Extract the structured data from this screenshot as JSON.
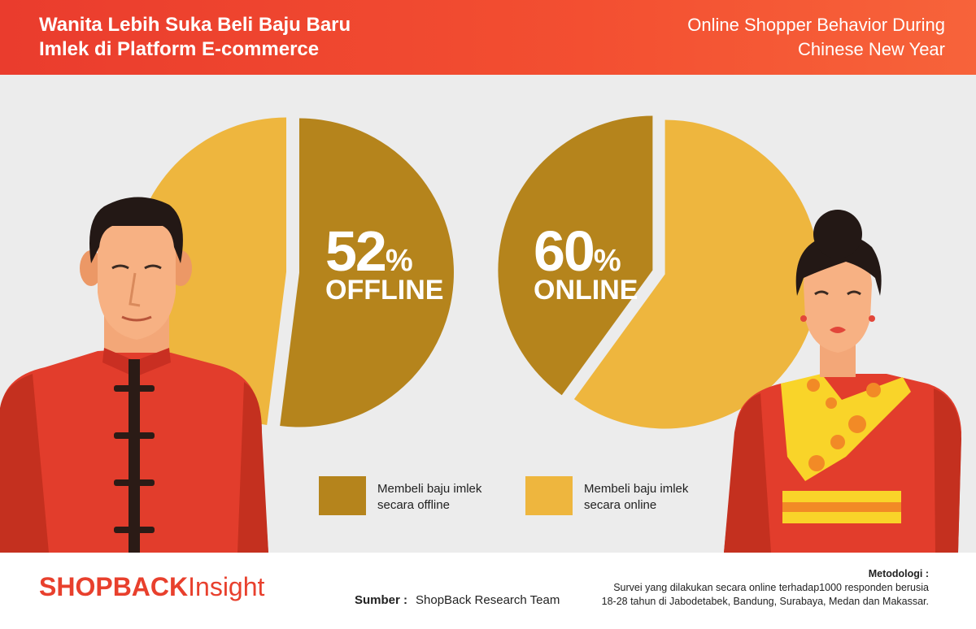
{
  "header": {
    "title_line1": "Wanita Lebih Suka Beli Baju Baru",
    "title_line2": "Imlek di Platform E-commerce",
    "subtitle_line1": "Online Shopper Behavior During",
    "subtitle_line2": "Chinese New Year"
  },
  "colors": {
    "offline": "#b5841c",
    "online": "#eeb63e",
    "accent": "#e8402d"
  },
  "chart_data": [
    {
      "type": "pie",
      "title": "",
      "big_value": "52",
      "big_unit": "%",
      "big_label": "OFFLINE",
      "slices": [
        {
          "label": "Membeli baju imlek secara offline",
          "value": 52,
          "color": "#b5841c"
        },
        {
          "label": "Membeli baju imlek secara online",
          "value": 48,
          "color": "#eeb63e"
        }
      ]
    },
    {
      "type": "pie",
      "title": "",
      "big_value": "60",
      "big_unit": "%",
      "big_label": "ONLINE",
      "slices": [
        {
          "label": "Membeli baju imlek secara online",
          "value": 60,
          "color": "#eeb63e"
        },
        {
          "label": "Membeli baju imlek secara offline",
          "value": 40,
          "color": "#b5841c"
        }
      ]
    }
  ],
  "legend": {
    "offline_line1": "Membeli baju imlek",
    "offline_line2": "secara offline",
    "online_line1": "Membeli baju imlek",
    "online_line2": "secara online"
  },
  "footer": {
    "logo_bold": "SHOPBACK",
    "logo_light": "Insight",
    "source_label": "Sumber :",
    "source_value": "ShopBack Research Team",
    "method_label": "Metodologi :",
    "method_line1": "Survei yang dilakukan secara online terhadap1000 responden berusia",
    "method_line2": "18-28 tahun di Jabodetabek, Bandung, Surabaya, Medan dan Makassar."
  }
}
